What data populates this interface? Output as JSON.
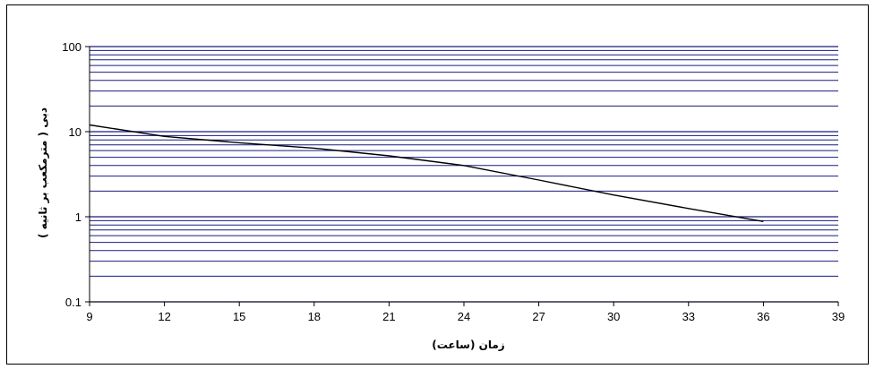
{
  "chart_data": {
    "type": "line",
    "title": "",
    "xlabel": "زمان (ساعت)",
    "ylabel": "دبی ( مترمکعب بر ثانیه )",
    "x_scale": "linear",
    "y_scale": "log",
    "xlim": [
      9,
      39
    ],
    "ylim": [
      0.1,
      100
    ],
    "x_ticks": [
      9,
      12,
      15,
      18,
      21,
      24,
      27,
      30,
      33,
      36,
      39
    ],
    "y_ticks": [
      0.1,
      1,
      10,
      100
    ],
    "x_tick_labels": [
      "9",
      "12",
      "15",
      "18",
      "21",
      "24",
      "27",
      "30",
      "33",
      "36",
      "39"
    ],
    "y_tick_labels": [
      "0.1",
      "1",
      "10",
      "100"
    ],
    "grid": {
      "horizontal": true,
      "vertical": false,
      "minor_horizontal": true,
      "color": "#1a1a80"
    },
    "legend": "none",
    "series": [
      {
        "color": "#000000",
        "points": [
          [
            9,
            12
          ],
          [
            12,
            8.8
          ],
          [
            15,
            7.4
          ],
          [
            18,
            6.4
          ],
          [
            21,
            5.2
          ],
          [
            24,
            4.0
          ],
          [
            27,
            2.7
          ],
          [
            30,
            1.8
          ],
          [
            33,
            1.25
          ],
          [
            36,
            0.88
          ]
        ]
      }
    ]
  }
}
